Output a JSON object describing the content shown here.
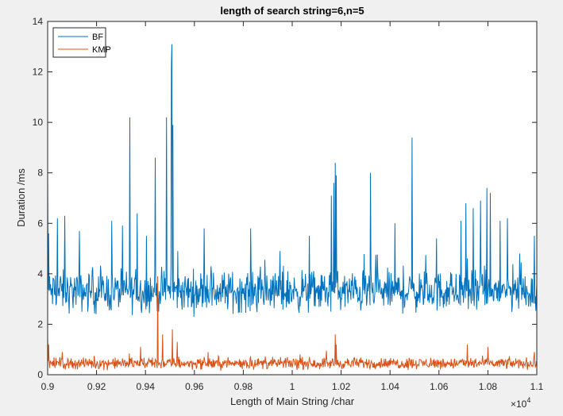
{
  "chart_data": {
    "type": "line",
    "title": "length of search string=6,n=5",
    "xlabel": "Length of Main String /char",
    "ylabel": "Duration /ms",
    "xlim": [
      9000,
      11000
    ],
    "ylim": [
      0,
      14
    ],
    "x_exponent_label": "×10",
    "x_exponent_power": "4",
    "xtick_values": [
      9000,
      9200,
      9400,
      9600,
      9800,
      10000,
      10200,
      10400,
      10600,
      10800,
      11000
    ],
    "xtick_labels": [
      "0.9",
      "0.92",
      "0.94",
      "0.96",
      "0.98",
      "1",
      "1.02",
      "1.04",
      "1.06",
      "1.08",
      "1.1"
    ],
    "ytick_values": [
      0,
      2,
      4,
      6,
      8,
      10,
      12,
      14
    ],
    "ytick_labels": [
      "0",
      "2",
      "4",
      "6",
      "8",
      "10",
      "12",
      "14"
    ],
    "grid": false,
    "legend_position": "top-left",
    "x_step": 2,
    "series": [
      {
        "name": "BF",
        "color": "#0072BD",
        "baseline": 3.3,
        "noise": 0.9,
        "spikes": [
          {
            "x": 9000,
            "y": 8.1
          },
          {
            "x": 9004,
            "y": 5.6
          },
          {
            "x": 9040,
            "y": 6.2
          },
          {
            "x": 9070,
            "y": 6.3
          },
          {
            "x": 9130,
            "y": 5.7
          },
          {
            "x": 9262,
            "y": 6.1
          },
          {
            "x": 9336,
            "y": 10.2
          },
          {
            "x": 9366,
            "y": 6.4
          },
          {
            "x": 9404,
            "y": 5.5
          },
          {
            "x": 9440,
            "y": 8.6
          },
          {
            "x": 9486,
            "y": 10.2
          },
          {
            "x": 9506,
            "y": 12.2
          },
          {
            "x": 9508,
            "y": 13.1
          },
          {
            "x": 9512,
            "y": 9.9
          },
          {
            "x": 9640,
            "y": 5.8
          },
          {
            "x": 9830,
            "y": 5.8
          },
          {
            "x": 9950,
            "y": 4.9
          },
          {
            "x": 10070,
            "y": 5.5
          },
          {
            "x": 10160,
            "y": 7.1
          },
          {
            "x": 10170,
            "y": 7.6
          },
          {
            "x": 10176,
            "y": 8.4
          },
          {
            "x": 10180,
            "y": 7.9
          },
          {
            "x": 10320,
            "y": 8.0
          },
          {
            "x": 10420,
            "y": 6.0
          },
          {
            "x": 10490,
            "y": 9.4
          },
          {
            "x": 10590,
            "y": 5.4
          },
          {
            "x": 10690,
            "y": 6.1
          },
          {
            "x": 10710,
            "y": 6.8
          },
          {
            "x": 10740,
            "y": 6.6
          },
          {
            "x": 10770,
            "y": 6.9
          },
          {
            "x": 10796,
            "y": 7.4
          },
          {
            "x": 10810,
            "y": 7.2
          },
          {
            "x": 10850,
            "y": 6.1
          },
          {
            "x": 10880,
            "y": 6.2
          },
          {
            "x": 10930,
            "y": 4.8
          },
          {
            "x": 10990,
            "y": 5.5
          }
        ]
      },
      {
        "name": "KMP",
        "color": "#D95319",
        "baseline": 0.45,
        "noise": 0.25,
        "spikes": [
          {
            "x": 9000,
            "y": 1.5
          },
          {
            "x": 9004,
            "y": 1.2
          },
          {
            "x": 9060,
            "y": 0.9
          },
          {
            "x": 9380,
            "y": 1.1
          },
          {
            "x": 9450,
            "y": 3.9
          },
          {
            "x": 9470,
            "y": 1.6
          },
          {
            "x": 9510,
            "y": 1.8
          },
          {
            "x": 9530,
            "y": 1.3
          },
          {
            "x": 10176,
            "y": 1.6
          },
          {
            "x": 10180,
            "y": 1.2
          },
          {
            "x": 10716,
            "y": 1.2
          },
          {
            "x": 10800,
            "y": 1.1
          },
          {
            "x": 10990,
            "y": 0.9
          }
        ]
      }
    ]
  }
}
